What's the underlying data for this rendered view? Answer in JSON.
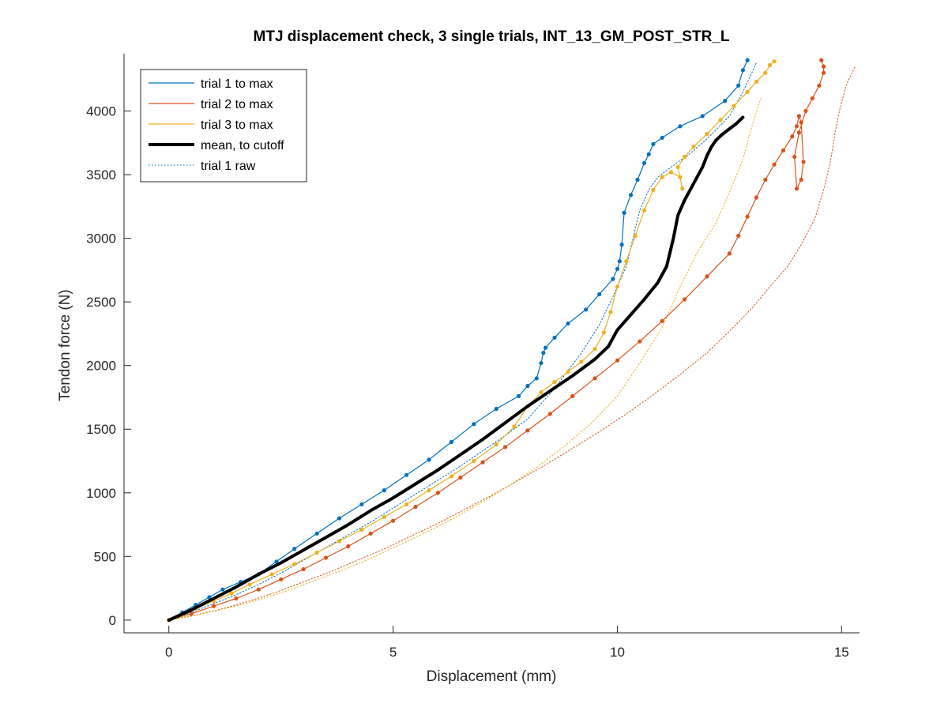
{
  "chart_data": {
    "type": "line",
    "title": "MTJ displacement check, 3 single trials, INT_13_GM_POST_STR_L",
    "xlabel": "Displacement (mm)",
    "ylabel": "Tendon force (N)",
    "xlim": [
      -1,
      15.4
    ],
    "ylim": [
      -100,
      4450
    ],
    "xticks": [
      0,
      5,
      10,
      15
    ],
    "yticks": [
      0,
      500,
      1000,
      1500,
      2000,
      2500,
      3000,
      3500,
      4000
    ],
    "grid": false,
    "legend_position": "top-left",
    "legend": [
      "trial 1 to max",
      "trial 2 to max",
      "trial 3 to max",
      "mean, to cutoff",
      "trial 1 raw"
    ],
    "series": [
      {
        "name": "trial 1 to max",
        "color": "#0072BD",
        "style": "solid-markers",
        "x": [
          0,
          0.3,
          0.6,
          0.9,
          1.2,
          1.6,
          2.0,
          2.4,
          2.8,
          3.3,
          3.8,
          4.3,
          4.8,
          5.3,
          5.8,
          6.3,
          6.8,
          7.3,
          7.8,
          8.0,
          8.2,
          8.3,
          8.35,
          8.4,
          8.6,
          8.9,
          9.3,
          9.6,
          9.9,
          10.0,
          10.05,
          10.1,
          10.15,
          10.3,
          10.45,
          10.6,
          10.7,
          10.8,
          11.0,
          11.4,
          11.9,
          12.4,
          12.7,
          12.8,
          12.9
        ],
        "y": [
          0,
          60,
          120,
          180,
          240,
          300,
          360,
          460,
          560,
          680,
          800,
          910,
          1020,
          1140,
          1260,
          1400,
          1540,
          1660,
          1760,
          1840,
          1900,
          2020,
          2100,
          2140,
          2220,
          2330,
          2440,
          2560,
          2680,
          2760,
          2820,
          2950,
          3200,
          3340,
          3460,
          3590,
          3660,
          3740,
          3790,
          3880,
          3960,
          4080,
          4200,
          4320,
          4400
        ]
      },
      {
        "name": "trial 2 to max",
        "color": "#D95319",
        "style": "solid-markers",
        "x": [
          0,
          0.5,
          1.0,
          1.5,
          2.0,
          2.5,
          3.0,
          3.5,
          4.0,
          4.5,
          5.0,
          5.5,
          6.0,
          6.5,
          7.0,
          7.5,
          8.0,
          8.5,
          9.0,
          9.5,
          10.0,
          10.5,
          11.0,
          11.5,
          12.0,
          12.5,
          12.7,
          12.9,
          13.1,
          13.3,
          13.5,
          13.7,
          13.9,
          14.0,
          14.05,
          14.1,
          14.15,
          14.1,
          14.0,
          13.95,
          14.05,
          14.2,
          14.35,
          14.5,
          14.6,
          14.6,
          14.55
        ],
        "y": [
          0,
          50,
          110,
          170,
          240,
          320,
          400,
          490,
          580,
          680,
          780,
          890,
          1000,
          1120,
          1240,
          1360,
          1490,
          1620,
          1760,
          1900,
          2040,
          2190,
          2350,
          2520,
          2700,
          2880,
          3020,
          3170,
          3320,
          3460,
          3580,
          3690,
          3800,
          3880,
          3960,
          3910,
          3600,
          3460,
          3390,
          3640,
          3830,
          4000,
          4100,
          4200,
          4300,
          4350,
          4400
        ]
      },
      {
        "name": "trial 3 to max",
        "color": "#EDB120",
        "style": "solid-markers",
        "x": [
          0,
          0.3,
          0.6,
          1.0,
          1.4,
          1.8,
          2.3,
          2.8,
          3.3,
          3.8,
          4.3,
          4.8,
          5.3,
          5.8,
          6.3,
          6.8,
          7.3,
          7.7,
          8.0,
          8.3,
          8.6,
          8.9,
          9.2,
          9.5,
          9.7,
          9.85,
          10.0,
          10.2,
          10.4,
          10.6,
          10.8,
          11.0,
          11.2,
          11.4,
          11.45,
          11.35,
          11.5,
          11.7,
          12.0,
          12.3,
          12.6,
          12.9,
          13.1,
          13.3,
          13.4,
          13.5
        ],
        "y": [
          0,
          40,
          90,
          150,
          210,
          280,
          360,
          440,
          530,
          620,
          710,
          810,
          910,
          1020,
          1130,
          1250,
          1380,
          1520,
          1680,
          1790,
          1870,
          1950,
          2030,
          2130,
          2260,
          2420,
          2620,
          2820,
          3020,
          3220,
          3380,
          3480,
          3520,
          3480,
          3390,
          3560,
          3640,
          3720,
          3820,
          3930,
          4040,
          4150,
          4230,
          4300,
          4360,
          4390
        ]
      },
      {
        "name": "mean, to cutoff",
        "color": "#000000",
        "style": "thick",
        "x": [
          0,
          0.5,
          1.0,
          1.5,
          2.0,
          2.5,
          3.0,
          3.5,
          4.0,
          4.5,
          5.0,
          5.5,
          6.0,
          6.5,
          7.0,
          7.5,
          8.0,
          8.5,
          9.0,
          9.5,
          9.8,
          10.0,
          10.3,
          10.6,
          10.9,
          11.1,
          11.25,
          11.35,
          11.5,
          11.7,
          11.9,
          12.0,
          12.1,
          12.2,
          12.35,
          12.5,
          12.65,
          12.8
        ],
        "y": [
          0,
          80,
          170,
          260,
          360,
          450,
          550,
          650,
          750,
          860,
          960,
          1070,
          1180,
          1300,
          1420,
          1550,
          1680,
          1800,
          1920,
          2050,
          2150,
          2280,
          2400,
          2520,
          2650,
          2780,
          3000,
          3180,
          3300,
          3430,
          3560,
          3650,
          3720,
          3770,
          3820,
          3860,
          3900,
          3950
        ]
      },
      {
        "name": "trial 1 raw",
        "color": "#0072BD",
        "style": "dotted",
        "x": [
          0,
          0.5,
          1.0,
          1.5,
          2.0,
          2.5,
          3.0,
          3.5,
          4.0,
          4.5,
          5.0,
          5.5,
          6.0,
          6.5,
          7.0,
          7.5,
          8.0,
          8.3,
          8.6,
          8.9,
          9.2,
          9.6,
          9.9,
          10.2,
          10.35,
          10.5,
          10.7,
          10.9,
          11.2,
          11.6,
          12.0,
          12.5,
          12.8,
          13.0,
          13.1
        ],
        "y": [
          0,
          60,
          130,
          200,
          280,
          370,
          470,
          570,
          670,
          770,
          880,
          990,
          1100,
          1210,
          1330,
          1450,
          1580,
          1700,
          1820,
          1960,
          2100,
          2320,
          2540,
          2780,
          3000,
          3220,
          3380,
          3480,
          3560,
          3660,
          3780,
          3960,
          4150,
          4300,
          4380
        ]
      },
      {
        "name": "",
        "color": "#D95319",
        "style": "dotted",
        "x": [
          0,
          0.6,
          1.2,
          1.8,
          2.4,
          3.0,
          3.6,
          4.2,
          4.8,
          5.4,
          6.0,
          6.6,
          7.2,
          7.8,
          8.4,
          9.0,
          9.6,
          10.2,
          10.8,
          11.4,
          12.0,
          12.5,
          13.0,
          13.4,
          13.8,
          14.1,
          14.4,
          14.6,
          14.75,
          14.85,
          14.95,
          15.1,
          15.3
        ],
        "y": [
          0,
          40,
          90,
          150,
          220,
          300,
          380,
          470,
          560,
          660,
          760,
          870,
          980,
          1100,
          1220,
          1350,
          1480,
          1620,
          1770,
          1930,
          2100,
          2270,
          2450,
          2620,
          2780,
          2950,
          3150,
          3380,
          3600,
          3820,
          4000,
          4200,
          4350
        ]
      },
      {
        "name": "",
        "color": "#EDB120",
        "style": "dotted",
        "x": [
          0,
          0.5,
          1.0,
          1.6,
          2.2,
          2.8,
          3.4,
          4.0,
          4.6,
          5.2,
          5.8,
          6.4,
          7.0,
          7.6,
          8.2,
          8.8,
          9.4,
          10.0,
          10.5,
          11.0,
          11.4,
          11.8,
          12.2,
          12.5,
          12.8,
          13.0,
          13.2
        ],
        "y": [
          0,
          30,
          70,
          120,
          180,
          250,
          330,
          410,
          500,
          600,
          700,
          810,
          930,
          1060,
          1200,
          1360,
          1540,
          1760,
          2020,
          2300,
          2620,
          2900,
          3120,
          3360,
          3620,
          3880,
          4100
        ]
      }
    ]
  }
}
